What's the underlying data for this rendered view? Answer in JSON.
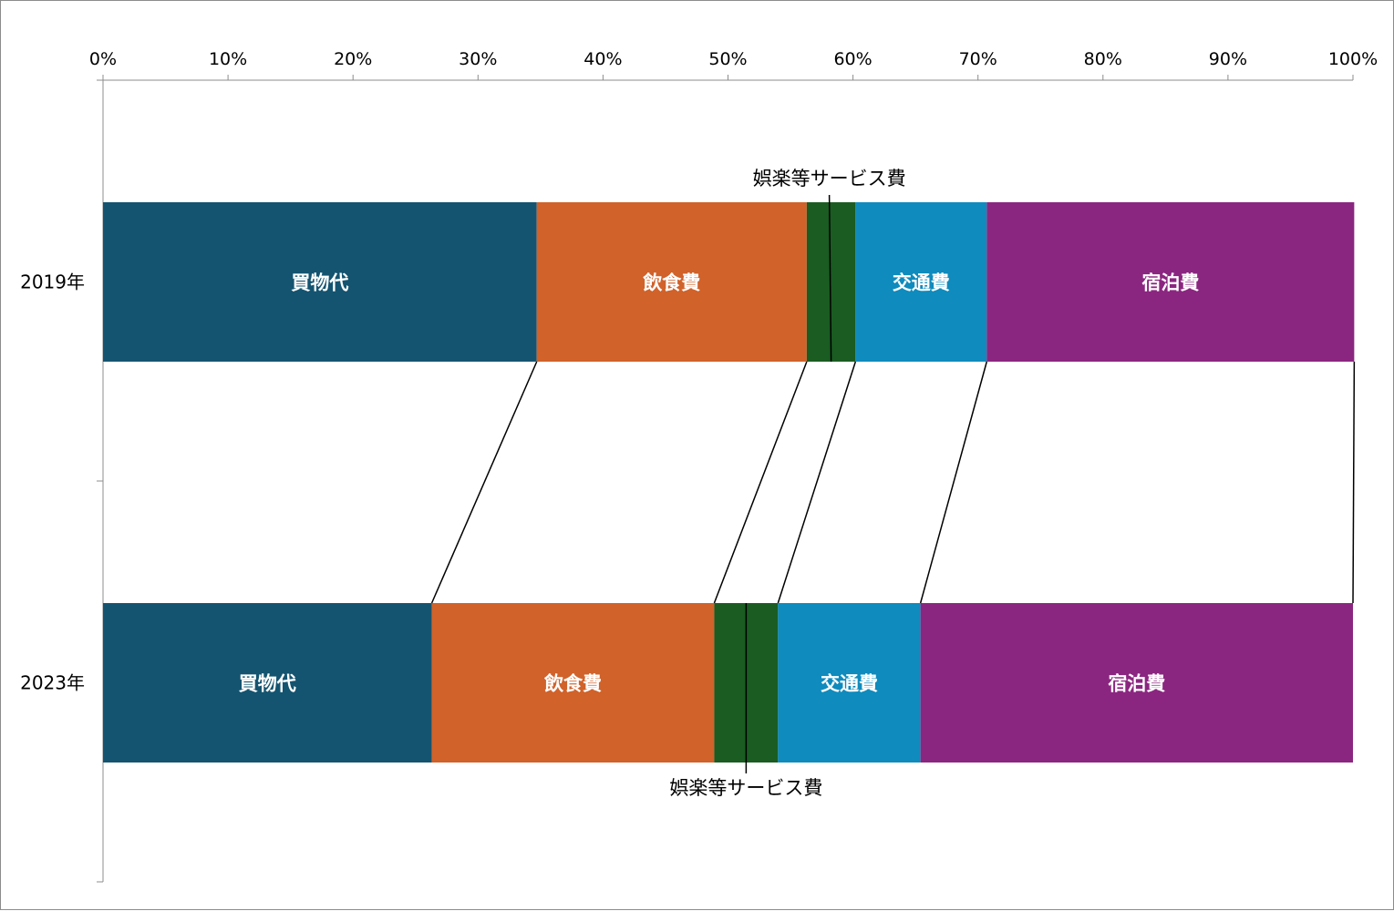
{
  "chart_data": {
    "type": "bar",
    "orientation": "horizontal",
    "stacked": "percent",
    "categories": [
      "2019年",
      "2023年"
    ],
    "x_axis": {
      "ticks": [
        "0%",
        "10%",
        "20%",
        "30%",
        "40%",
        "50%",
        "60%",
        "70%",
        "80%",
        "90%",
        "100%"
      ],
      "xlim": [
        0,
        100
      ],
      "position": "top"
    },
    "grid": false,
    "legend": "none",
    "series": [
      {
        "name": "買物代",
        "color": "#145470",
        "values": [
          34.7,
          26.3
        ]
      },
      {
        "name": "飲食費",
        "color": "#d0622a",
        "values": [
          21.6,
          22.6
        ]
      },
      {
        "name": "娯楽等サービス費",
        "color": "#1a5c22",
        "values": [
          3.9,
          5.1
        ]
      },
      {
        "name": "交通費",
        "color": "#0f8bbd",
        "values": [
          10.5,
          11.4
        ]
      },
      {
        "name": "宿泊費",
        "color": "#8b2680",
        "values": [
          29.4,
          34.6
        ]
      }
    ],
    "series_lines": true,
    "callouts": [
      {
        "category": "2019年",
        "series": "娯楽等サービス費",
        "text": "娯楽等サービス費",
        "placement": "above"
      },
      {
        "category": "2023年",
        "series": "娯楽等サービス費",
        "text": "娯楽等サービス費",
        "placement": "below"
      }
    ],
    "inner_labels": {
      "2019年": [
        "買物代",
        "飲食費",
        "",
        "交通費",
        "宿泊費"
      ],
      "2023年": [
        "買物代",
        "飲食費",
        "",
        "交通費",
        "宿泊費"
      ]
    }
  }
}
